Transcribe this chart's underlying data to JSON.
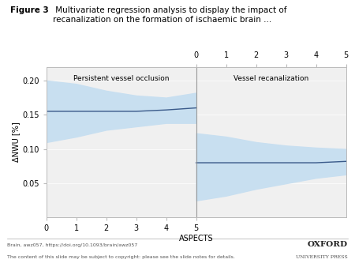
{
  "title_bold": "Figure 3",
  "title_rest": " Multivariate regression analysis to display the impact of\nrecanalization on the formation of ischaemic brain ...",
  "xlabel": "ASPECTS",
  "ylabel": "ΔNWU [%]",
  "footer_left1": "Brain, awz057, https://doi.org/10.1093/brain/awz057",
  "footer_left2": "The content of this slide may be subject to copyright: please see the slide notes for details.",
  "section1_label": "Persistent vessel occlusion",
  "section2_label": "Vessel recanalization",
  "bg_color": "#ffffff",
  "plot_bg_color": "#f0f0f0",
  "band_color": "#c8dff0",
  "line_color": "#3a5a8a",
  "divider_color": "#999999",
  "left_x": [
    0,
    1,
    2,
    3,
    4,
    5
  ],
  "left_mean": [
    0.155,
    0.155,
    0.155,
    0.155,
    0.157,
    0.16
  ],
  "left_upper": [
    0.2,
    0.195,
    0.185,
    0.178,
    0.175,
    0.182
  ],
  "left_lower": [
    0.11,
    0.118,
    0.128,
    0.133,
    0.138,
    0.138
  ],
  "right_x": [
    5,
    6,
    7,
    8,
    9,
    10
  ],
  "right_mean": [
    0.08,
    0.08,
    0.08,
    0.08,
    0.08,
    0.082
  ],
  "right_upper": [
    0.123,
    0.118,
    0.11,
    0.105,
    0.102,
    0.1
  ],
  "right_lower": [
    0.025,
    0.032,
    0.042,
    0.05,
    0.058,
    0.063
  ],
  "y_ticks": [
    0.05,
    0.1,
    0.15,
    0.2
  ],
  "ylim": [
    0.0,
    0.22
  ]
}
